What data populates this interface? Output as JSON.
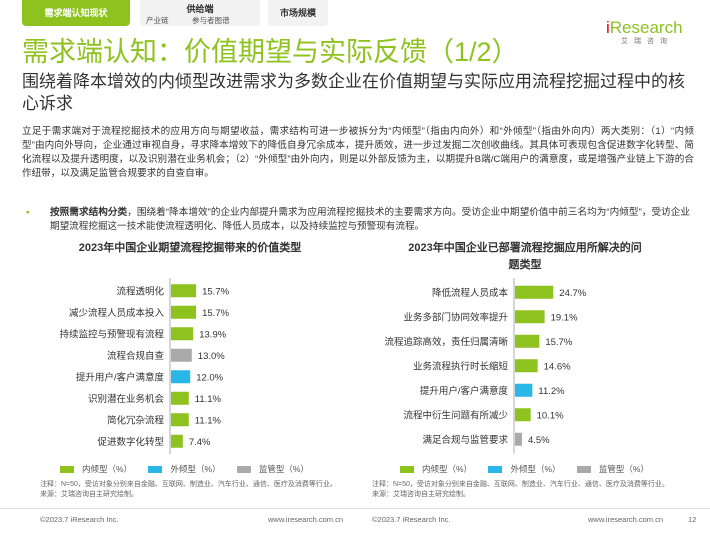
{
  "nav": {
    "active_tab": "需求端认知现状",
    "supply_tab": "供给端",
    "supply_sub1": "产业链",
    "supply_sub2": "参与者图谱",
    "market_tab": "市场规模"
  },
  "logo": {
    "word_i": "i",
    "word_rest": "Research",
    "cn": "艾瑞咨询"
  },
  "page": {
    "title": "需求端认知：价值期望与实际反馈（1/2）",
    "subtitle": "围绕着降本增效的内倾型改进需求为多数企业在价值期望与实际应用流程挖掘过程中的核心诉求",
    "body": "立足于需求端对于流程挖掘技术的应用方向与期望收益，需求结构可进一步被拆分为“内倾型”（指由内向外）和“外倾型”（指由外向内）两大类别：（1）“内倾型”由内向外导向，企业通过审视自身，寻求降本增效下的降低自身冗余成本，提升质效，进一步过发掘二次创收曲线。其具体可表现包含促进数字化转型、简化流程以及提升透明度，以及识别潜在业务机会；（2）“外倾型”由外向内，则是以外部反馈为主，以期提升B端/C端用户的满意度，或是增强产业链上下游的合作纽带，以及满足监管合规要求的自查自审。",
    "bullet_bold": "按照需求结构分类",
    "bullet_text": "，围绕着“降本增效”的企业内部提升需求为应用流程挖掘技术的主要需求方向。受访企业中期望价值中前三名均为“内倾型”，受访企业期望流程挖掘这一技术能使流程透明化、降低人员成本，以及持续监控与预警现有流程。"
  },
  "legend": {
    "inner": "内倾型（%）",
    "outer": "外倾型（%）",
    "reg": "监管型（%）"
  },
  "colors": {
    "inner": "#8dc21f",
    "outer": "#29b6e8",
    "reg": "#aaaaaa",
    "brand": "#8dc21f"
  },
  "notes": {
    "left": "注释：N=50，受访对象分别来自金融、互联网、制造业、汽车行业、通信、医疗及消费等行业。\n来源：艾瑞咨询自主研究绘制。",
    "right": "注释：N=50，受访对象分别来自金融、互联网、制造业、汽车行业、通信、医疗及消费等行业。\n来源：艾瑞咨询自主研究绘制。"
  },
  "footer": {
    "left_copy": "©2023.7 iResearch Inc.",
    "left_url": "www.iresearch.com.cn",
    "right_copy": "©2023.7 iResearch Inc.",
    "right_url": "www.iresearch.com.cn",
    "page_no": "12"
  },
  "chart_data": [
    {
      "type": "bar",
      "orientation": "horizontal",
      "title": "2023年中国企业期望流程挖掘带来的价值类型",
      "categories": [
        "流程透明化",
        "减少流程人员成本投入",
        "持续监控与预警现有流程",
        "流程合规自查",
        "提升用户/客户满意度",
        "识别潜在业务机会",
        "简化冗杂流程",
        "促进数字化转型"
      ],
      "values": [
        15.7,
        15.7,
        13.9,
        13.0,
        12.0,
        11.1,
        11.1,
        7.4
      ],
      "labels": [
        "15.7%",
        "15.7%",
        "13.9%",
        "13.0%",
        "12.0%",
        "11.1%",
        "11.1%",
        "7.4%"
      ],
      "types": [
        "inner",
        "inner",
        "inner",
        "reg",
        "outer",
        "inner",
        "inner",
        "inner"
      ],
      "xlim": [
        0,
        25
      ],
      "grid": false,
      "legend": "bottom"
    },
    {
      "type": "bar",
      "orientation": "horizontal",
      "title": "2023年中国企业已部署流程挖掘应用所解决的问题类型",
      "categories": [
        "降低流程人员成本",
        "业务多部门协同效率提升",
        "流程追踪高效，责任归属清晰",
        "业务流程执行时长缩短",
        "提升用户/客户满意度",
        "流程中衍生问题有所减少",
        "满足合规与监管要求"
      ],
      "values": [
        24.7,
        19.1,
        15.7,
        14.6,
        11.2,
        10.1,
        4.5
      ],
      "labels": [
        "24.7%",
        "19.1%",
        "15.7%",
        "14.6%",
        "11.2%",
        "10.1%",
        "4.5%"
      ],
      "types": [
        "inner",
        "inner",
        "inner",
        "inner",
        "outer",
        "inner",
        "reg"
      ],
      "xlim": [
        0,
        25
      ],
      "grid": false,
      "legend": "bottom"
    }
  ]
}
